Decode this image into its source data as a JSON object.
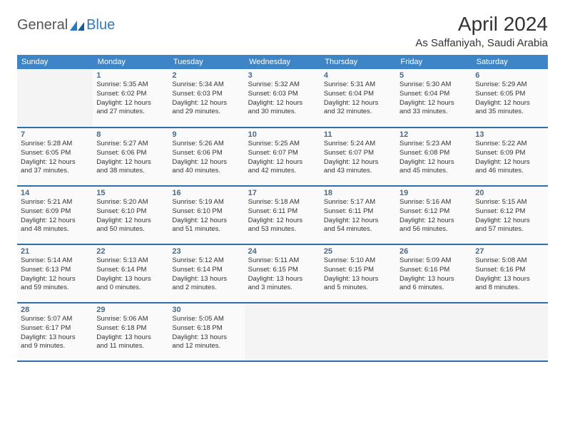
{
  "brand": {
    "part1": "General",
    "part2": "Blue"
  },
  "title": "April 2024",
  "location": "As Saffaniyah, Saudi Arabia",
  "header_bg": "#3d85c6",
  "divider_color": "#2f6fa8",
  "cell_bg": "#fafafa",
  "empty_bg": "#f4f4f4",
  "days": [
    "Sunday",
    "Monday",
    "Tuesday",
    "Wednesday",
    "Thursday",
    "Friday",
    "Saturday"
  ],
  "weeks": [
    [
      null,
      {
        "n": "1",
        "sr": "Sunrise: 5:35 AM",
        "ss": "Sunset: 6:02 PM",
        "d1": "Daylight: 12 hours",
        "d2": "and 27 minutes."
      },
      {
        "n": "2",
        "sr": "Sunrise: 5:34 AM",
        "ss": "Sunset: 6:03 PM",
        "d1": "Daylight: 12 hours",
        "d2": "and 29 minutes."
      },
      {
        "n": "3",
        "sr": "Sunrise: 5:32 AM",
        "ss": "Sunset: 6:03 PM",
        "d1": "Daylight: 12 hours",
        "d2": "and 30 minutes."
      },
      {
        "n": "4",
        "sr": "Sunrise: 5:31 AM",
        "ss": "Sunset: 6:04 PM",
        "d1": "Daylight: 12 hours",
        "d2": "and 32 minutes."
      },
      {
        "n": "5",
        "sr": "Sunrise: 5:30 AM",
        "ss": "Sunset: 6:04 PM",
        "d1": "Daylight: 12 hours",
        "d2": "and 33 minutes."
      },
      {
        "n": "6",
        "sr": "Sunrise: 5:29 AM",
        "ss": "Sunset: 6:05 PM",
        "d1": "Daylight: 12 hours",
        "d2": "and 35 minutes."
      }
    ],
    [
      {
        "n": "7",
        "sr": "Sunrise: 5:28 AM",
        "ss": "Sunset: 6:05 PM",
        "d1": "Daylight: 12 hours",
        "d2": "and 37 minutes."
      },
      {
        "n": "8",
        "sr": "Sunrise: 5:27 AM",
        "ss": "Sunset: 6:06 PM",
        "d1": "Daylight: 12 hours",
        "d2": "and 38 minutes."
      },
      {
        "n": "9",
        "sr": "Sunrise: 5:26 AM",
        "ss": "Sunset: 6:06 PM",
        "d1": "Daylight: 12 hours",
        "d2": "and 40 minutes."
      },
      {
        "n": "10",
        "sr": "Sunrise: 5:25 AM",
        "ss": "Sunset: 6:07 PM",
        "d1": "Daylight: 12 hours",
        "d2": "and 42 minutes."
      },
      {
        "n": "11",
        "sr": "Sunrise: 5:24 AM",
        "ss": "Sunset: 6:07 PM",
        "d1": "Daylight: 12 hours",
        "d2": "and 43 minutes."
      },
      {
        "n": "12",
        "sr": "Sunrise: 5:23 AM",
        "ss": "Sunset: 6:08 PM",
        "d1": "Daylight: 12 hours",
        "d2": "and 45 minutes."
      },
      {
        "n": "13",
        "sr": "Sunrise: 5:22 AM",
        "ss": "Sunset: 6:09 PM",
        "d1": "Daylight: 12 hours",
        "d2": "and 46 minutes."
      }
    ],
    [
      {
        "n": "14",
        "sr": "Sunrise: 5:21 AM",
        "ss": "Sunset: 6:09 PM",
        "d1": "Daylight: 12 hours",
        "d2": "and 48 minutes."
      },
      {
        "n": "15",
        "sr": "Sunrise: 5:20 AM",
        "ss": "Sunset: 6:10 PM",
        "d1": "Daylight: 12 hours",
        "d2": "and 50 minutes."
      },
      {
        "n": "16",
        "sr": "Sunrise: 5:19 AM",
        "ss": "Sunset: 6:10 PM",
        "d1": "Daylight: 12 hours",
        "d2": "and 51 minutes."
      },
      {
        "n": "17",
        "sr": "Sunrise: 5:18 AM",
        "ss": "Sunset: 6:11 PM",
        "d1": "Daylight: 12 hours",
        "d2": "and 53 minutes."
      },
      {
        "n": "18",
        "sr": "Sunrise: 5:17 AM",
        "ss": "Sunset: 6:11 PM",
        "d1": "Daylight: 12 hours",
        "d2": "and 54 minutes."
      },
      {
        "n": "19",
        "sr": "Sunrise: 5:16 AM",
        "ss": "Sunset: 6:12 PM",
        "d1": "Daylight: 12 hours",
        "d2": "and 56 minutes."
      },
      {
        "n": "20",
        "sr": "Sunrise: 5:15 AM",
        "ss": "Sunset: 6:12 PM",
        "d1": "Daylight: 12 hours",
        "d2": "and 57 minutes."
      }
    ],
    [
      {
        "n": "21",
        "sr": "Sunrise: 5:14 AM",
        "ss": "Sunset: 6:13 PM",
        "d1": "Daylight: 12 hours",
        "d2": "and 59 minutes."
      },
      {
        "n": "22",
        "sr": "Sunrise: 5:13 AM",
        "ss": "Sunset: 6:14 PM",
        "d1": "Daylight: 13 hours",
        "d2": "and 0 minutes."
      },
      {
        "n": "23",
        "sr": "Sunrise: 5:12 AM",
        "ss": "Sunset: 6:14 PM",
        "d1": "Daylight: 13 hours",
        "d2": "and 2 minutes."
      },
      {
        "n": "24",
        "sr": "Sunrise: 5:11 AM",
        "ss": "Sunset: 6:15 PM",
        "d1": "Daylight: 13 hours",
        "d2": "and 3 minutes."
      },
      {
        "n": "25",
        "sr": "Sunrise: 5:10 AM",
        "ss": "Sunset: 6:15 PM",
        "d1": "Daylight: 13 hours",
        "d2": "and 5 minutes."
      },
      {
        "n": "26",
        "sr": "Sunrise: 5:09 AM",
        "ss": "Sunset: 6:16 PM",
        "d1": "Daylight: 13 hours",
        "d2": "and 6 minutes."
      },
      {
        "n": "27",
        "sr": "Sunrise: 5:08 AM",
        "ss": "Sunset: 6:16 PM",
        "d1": "Daylight: 13 hours",
        "d2": "and 8 minutes."
      }
    ],
    [
      {
        "n": "28",
        "sr": "Sunrise: 5:07 AM",
        "ss": "Sunset: 6:17 PM",
        "d1": "Daylight: 13 hours",
        "d2": "and 9 minutes."
      },
      {
        "n": "29",
        "sr": "Sunrise: 5:06 AM",
        "ss": "Sunset: 6:18 PM",
        "d1": "Daylight: 13 hours",
        "d2": "and 11 minutes."
      },
      {
        "n": "30",
        "sr": "Sunrise: 5:05 AM",
        "ss": "Sunset: 6:18 PM",
        "d1": "Daylight: 13 hours",
        "d2": "and 12 minutes."
      },
      null,
      null,
      null,
      null
    ]
  ]
}
